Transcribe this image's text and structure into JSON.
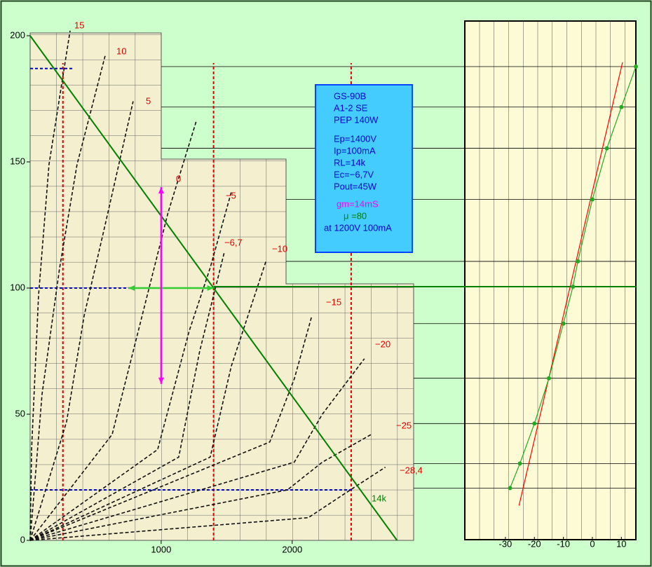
{
  "chart_data": [
    {
      "type": "line",
      "xlim": [
        0,
        2900
      ],
      "ylim": [
        0,
        200
      ],
      "xticks": [
        1000,
        2000
      ],
      "yticks": [
        0,
        50,
        100,
        150,
        200
      ],
      "series": [
        {
          "name": "15",
          "color": "#111111",
          "x": [
            0,
            11,
            64,
            144,
            305
          ],
          "values": [
            0,
            36,
            97,
            149,
            202
          ]
        },
        {
          "name": "10",
          "color": "#111111",
          "x": [
            0,
            91,
            225,
            358,
            572
          ],
          "values": [
            0,
            58,
            108,
            149,
            192
          ]
        },
        {
          "name": "5",
          "color": "#111111",
          "x": [
            0,
            278,
            412,
            572,
            786
          ],
          "values": [
            0,
            47,
            89,
            125,
            174
          ]
        },
        {
          "name": "0",
          "color": "#111111",
          "x": [
            0,
            626,
            840,
            1053,
            1267
          ],
          "values": [
            0,
            42,
            86,
            130,
            166
          ]
        },
        {
          "name": "−5",
          "color": "#111111",
          "x": [
            0,
            973,
            1214,
            1374,
            1535
          ],
          "values": [
            0,
            36,
            83,
            108,
            138
          ]
        },
        {
          "name": "−6,7",
          "color": "#111111",
          "x": [
            0,
            1134,
            1294,
            1481
          ],
          "values": [
            0,
            33,
            75,
            114
          ]
        },
        {
          "name": "−10",
          "color": "#111111",
          "x": [
            0,
            1374,
            1535,
            1802
          ],
          "values": [
            0,
            33,
            69,
            111
          ]
        },
        {
          "name": "−15",
          "color": "#111111",
          "x": [
            0,
            1829,
            2016,
            2150
          ],
          "values": [
            0,
            39,
            64,
            89
          ]
        },
        {
          "name": "−20",
          "color": "#111111",
          "x": [
            0,
            2016,
            2230,
            2551
          ],
          "values": [
            0,
            31,
            50,
            72
          ]
        },
        {
          "name": "−25",
          "color": "#111111",
          "x": [
            0,
            1963,
            2230,
            2604
          ],
          "values": [
            0,
            20,
            31,
            42
          ]
        },
        {
          "name": "−28,4",
          "color": "#111111",
          "x": [
            0,
            2123,
            2444,
            2711
          ],
          "values": [
            0,
            9,
            20,
            29
          ]
        }
      ],
      "load_line": {
        "name": "14k",
        "color": "#008000",
        "x": [
          0,
          2800
        ],
        "values": [
          200,
          0
        ]
      },
      "vertical_guides": {
        "color": "#e00000",
        "x": [
          250,
          1400,
          2450
        ]
      },
      "horizontal_guides": {
        "color": "#0000cc",
        "values": [
          187,
          100,
          20
        ]
      },
      "arrows": [
        {
          "color": "#33cc33",
          "x": [
            750,
            1400
          ],
          "values": [
            100,
            100
          ]
        },
        {
          "color": "#ff00ff",
          "x": [
            1000,
            1000
          ],
          "values": [
            140,
            62
          ]
        }
      ]
    },
    {
      "type": "scatter",
      "xlim": [
        -44,
        15
      ],
      "ylim": [
        0,
        205
      ],
      "xticks": [
        -30,
        -20,
        -10,
        0,
        10
      ],
      "series": [
        {
          "color": "#22aa22",
          "x": [
            -28.4,
            -25,
            -20,
            -15,
            -10,
            -6.7,
            -5,
            0,
            5,
            10,
            15
          ],
          "values": [
            20.4,
            30.1,
            45.9,
            63.8,
            85.4,
            100,
            110,
            134.5,
            154.7,
            171,
            187
          ]
        }
      ],
      "fit_line": {
        "color": "#ff0000",
        "x": [
          -25.3,
          10.4
        ],
        "values": [
          13.5,
          188.7
        ]
      }
    }
  ],
  "info_box": {
    "lines": [
      {
        "text": "GS-90B",
        "color": "#0000cc"
      },
      {
        "text": "A1-2 SE",
        "color": "#0000cc"
      },
      {
        "text": "PEP 140W",
        "color": "#0000cc"
      },
      {
        "text": "Ep=1400V",
        "color": "#0000cc"
      },
      {
        "text": "Ip=100mA",
        "color": "#0000cc"
      },
      {
        "text": "RL=14k",
        "color": "#0000cc"
      },
      {
        "text": "Ec=−6,7V",
        "color": "#0000cc"
      },
      {
        "text": "Pout=45W",
        "color": "#0000cc"
      },
      {
        "text": "gm=14mS",
        "color": "#ff00ff"
      },
      {
        "text": "μ =80",
        "color": "#008000"
      },
      {
        "text": "at 1200V 100mA",
        "color": "#0000cc"
      }
    ]
  }
}
